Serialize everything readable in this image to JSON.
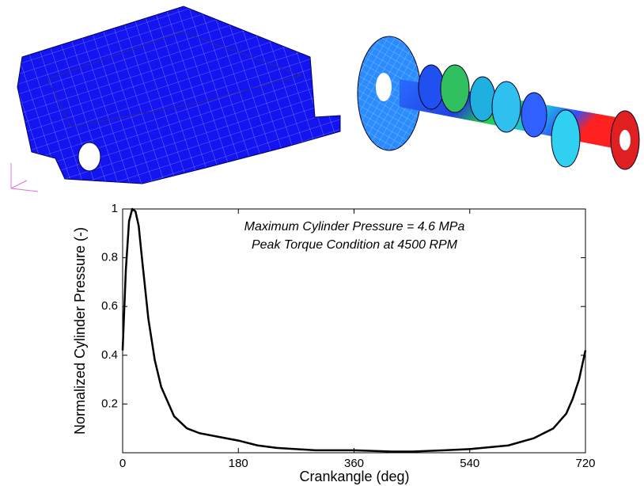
{
  "chart_data": {
    "type": "line",
    "xlabel": "Crankangle (deg)",
    "ylabel": "Normalized Cylinder Pressure (-)",
    "annotations": [
      "Maximum Cylinder Pressure = 4.6 MPa",
      "Peak Torque Condition at 4500 RPM"
    ],
    "x": [
      0,
      5,
      10,
      15,
      20,
      25,
      30,
      40,
      50,
      60,
      80,
      100,
      120,
      150,
      180,
      210,
      240,
      300,
      360,
      420,
      450,
      500,
      540,
      600,
      640,
      670,
      690,
      700,
      710,
      720
    ],
    "series": [
      {
        "color": "#000000",
        "values": [
          0.42,
          0.75,
          0.95,
          1.0,
          0.99,
          0.93,
          0.8,
          0.55,
          0.38,
          0.27,
          0.15,
          0.1,
          0.08,
          0.065,
          0.05,
          0.03,
          0.02,
          0.01,
          0.01,
          0.005,
          0.005,
          0.01,
          0.015,
          0.03,
          0.06,
          0.1,
          0.16,
          0.22,
          0.3,
          0.42
        ]
      }
    ],
    "xlim": [
      0,
      720
    ],
    "xticks": [
      0,
      180,
      360,
      540,
      720
    ],
    "ylim": [
      0,
      1
    ],
    "yticks": [
      0.2,
      0.4,
      0.6,
      0.8,
      1
    ],
    "grid": false
  }
}
